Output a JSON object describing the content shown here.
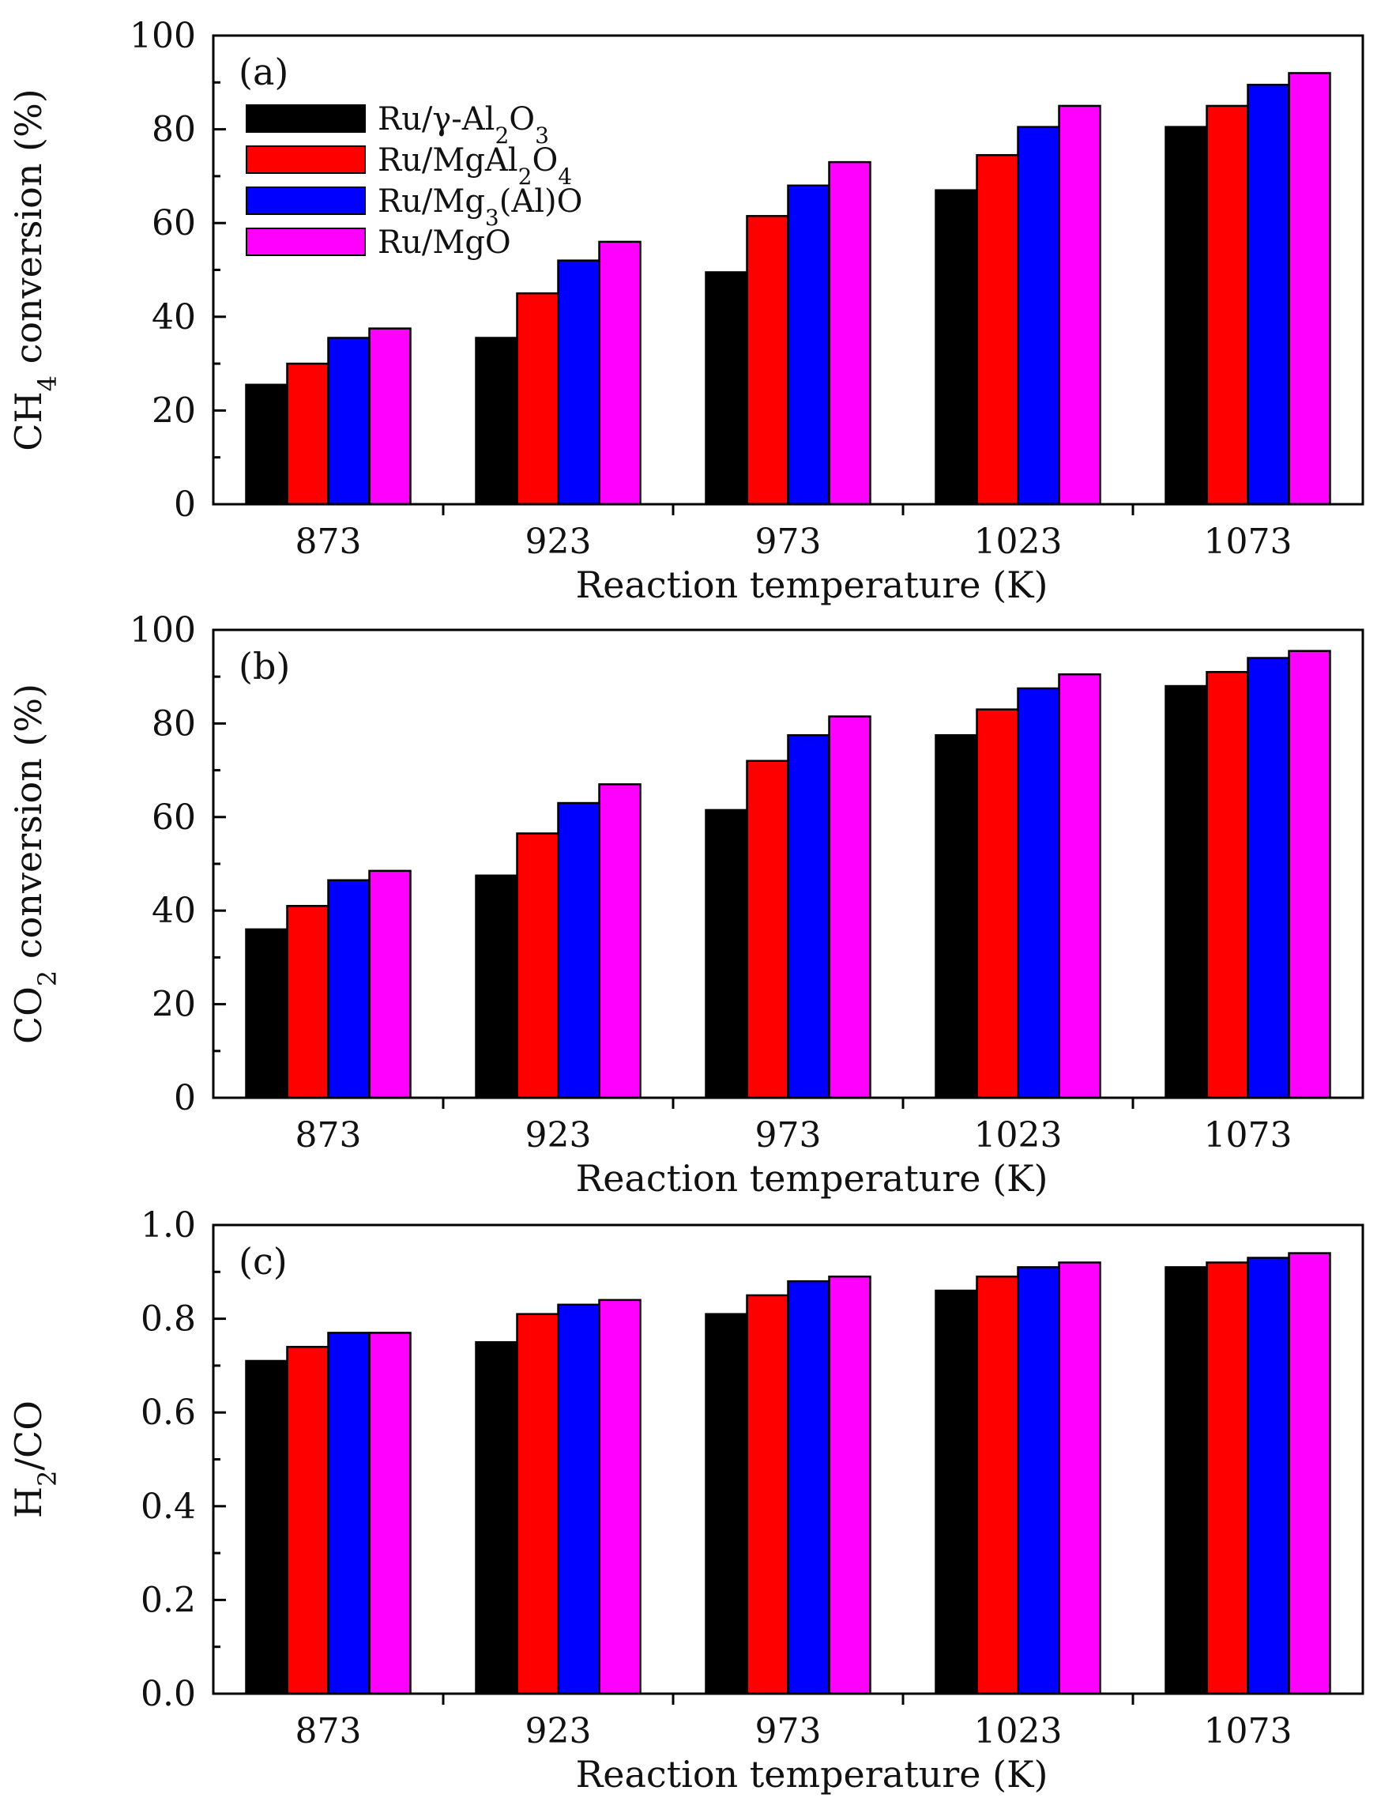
{
  "figure": {
    "xlabel": "Reaction temperature (K)",
    "legend": [
      {
        "base": "Ru/γ-Al",
        "sub1": "2",
        "mid": "O",
        "sub2": "3",
        "tail": ""
      },
      {
        "base": "Ru/MgAl",
        "sub1": "2",
        "mid": "O",
        "sub2": "4",
        "tail": ""
      },
      {
        "base": "Ru/Mg",
        "sub1": "3",
        "mid": "(Al)O",
        "sub2": "",
        "tail": ""
      },
      {
        "base": "Ru/MgO",
        "sub1": "",
        "mid": "",
        "sub2": "",
        "tail": ""
      }
    ]
  },
  "chart_data": [
    {
      "type": "bar",
      "panel_label": "(a)",
      "ylabel": {
        "pre": "CH",
        "sub": "4",
        "post": " conversion (%)"
      },
      "xlabel": "Reaction temperature (K)",
      "categories": [
        "873",
        "923",
        "973",
        "1023",
        "1073"
      ],
      "ylim": [
        0,
        100
      ],
      "yticks": [
        "0",
        "20",
        "40",
        "60",
        "80",
        "100"
      ],
      "series": [
        {
          "name": "Ru/γ-Al2O3",
          "color": "#000000",
          "values": [
            25.5,
            35.5,
            49.5,
            67,
            80.5
          ]
        },
        {
          "name": "Ru/MgAl2O4",
          "color": "#ff0000",
          "values": [
            30,
            45,
            61.5,
            74.5,
            85
          ]
        },
        {
          "name": "Ru/Mg3(Al)O",
          "color": "#0000ff",
          "values": [
            35.5,
            52,
            68,
            80.5,
            89.5
          ]
        },
        {
          "name": "Ru/MgO",
          "color": "#ff00ff",
          "values": [
            37.5,
            56,
            73,
            85,
            92
          ]
        }
      ]
    },
    {
      "type": "bar",
      "panel_label": "(b)",
      "ylabel": {
        "pre": "CO",
        "sub": "2",
        "post": " conversion (%)"
      },
      "xlabel": "Reaction temperature (K)",
      "categories": [
        "873",
        "923",
        "973",
        "1023",
        "1073"
      ],
      "ylim": [
        0,
        100
      ],
      "yticks": [
        "0",
        "20",
        "40",
        "60",
        "80",
        "100"
      ],
      "series": [
        {
          "name": "Ru/γ-Al2O3",
          "color": "#000000",
          "values": [
            36,
            47.5,
            61.5,
            77.5,
            88
          ]
        },
        {
          "name": "Ru/MgAl2O4",
          "color": "#ff0000",
          "values": [
            41,
            56.5,
            72,
            83,
            91
          ]
        },
        {
          "name": "Ru/Mg3(Al)O",
          "color": "#0000ff",
          "values": [
            46.5,
            63,
            77.5,
            87.5,
            94
          ]
        },
        {
          "name": "Ru/MgO",
          "color": "#ff00ff",
          "values": [
            48.5,
            67,
            81.5,
            90.5,
            95.5
          ]
        }
      ]
    },
    {
      "type": "bar",
      "panel_label": "(c)",
      "ylabel": {
        "pre": "H",
        "sub": "2",
        "post": "/CO"
      },
      "xlabel": "Reaction temperature (K)",
      "categories": [
        "873",
        "923",
        "973",
        "1023",
        "1073"
      ],
      "ylim": [
        0,
        1.0
      ],
      "yticks": [
        "0.0",
        "0.2",
        "0.4",
        "0.6",
        "0.8",
        "1.0"
      ],
      "series": [
        {
          "name": "Ru/γ-Al2O3",
          "color": "#000000",
          "values": [
            0.71,
            0.75,
            0.81,
            0.86,
            0.91
          ]
        },
        {
          "name": "Ru/MgAl2O4",
          "color": "#ff0000",
          "values": [
            0.74,
            0.81,
            0.85,
            0.89,
            0.92
          ]
        },
        {
          "name": "Ru/Mg3(Al)O",
          "color": "#0000ff",
          "values": [
            0.77,
            0.83,
            0.88,
            0.91,
            0.93
          ]
        },
        {
          "name": "Ru/MgO",
          "color": "#ff00ff",
          "values": [
            0.77,
            0.84,
            0.89,
            0.92,
            0.94
          ]
        }
      ]
    }
  ]
}
